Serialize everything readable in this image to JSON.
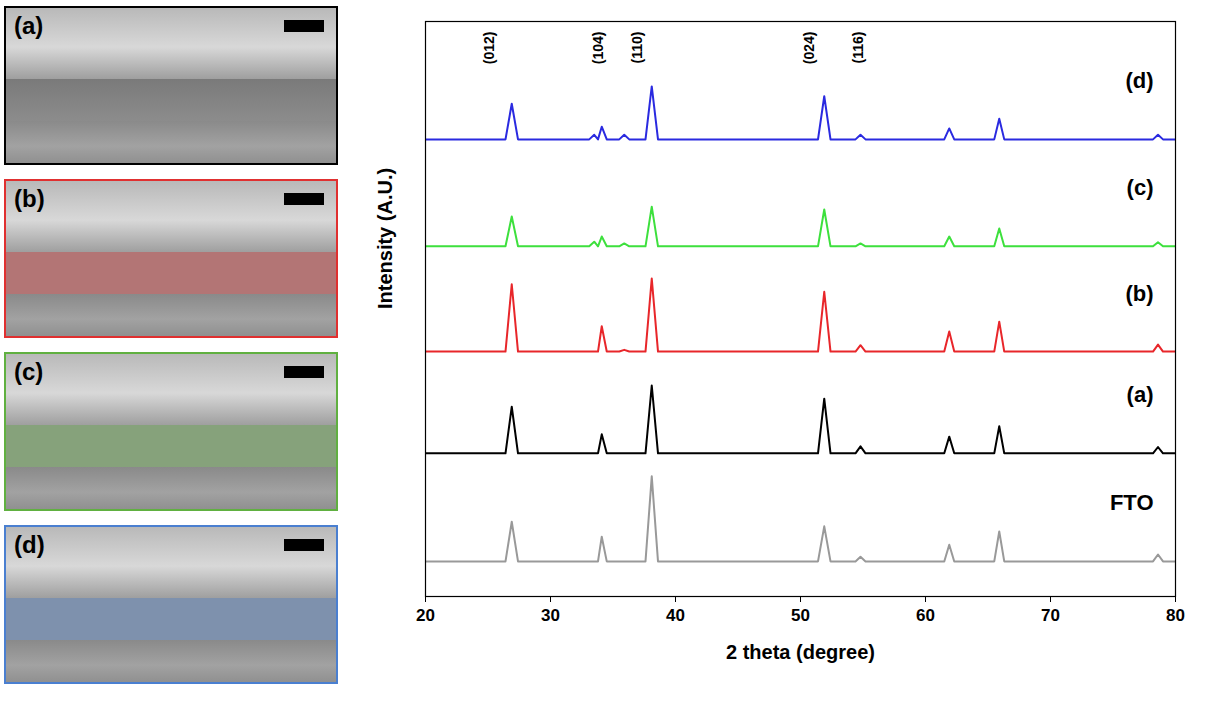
{
  "sem_panels": [
    {
      "label": "(a)",
      "color": "#000000"
    },
    {
      "label": "(b)",
      "color": "#e03030"
    },
    {
      "label": "(c)",
      "color": "#60b040"
    },
    {
      "label": "(d)",
      "color": "#4a7fd0"
    }
  ],
  "chart_data": {
    "type": "line",
    "xlabel": "2 theta (degree)",
    "ylabel": "Intensity (A.U.)",
    "xlim": [
      20,
      80
    ],
    "xticks": [
      20,
      30,
      40,
      50,
      60,
      70,
      80
    ],
    "ylim": [
      0,
      100
    ],
    "yticks": [],
    "tick_labels": "x",
    "x": [
      20,
      26.4,
      26.9,
      27.4,
      33.1,
      33.5,
      33.8,
      34.1,
      34.5,
      35.5,
      35.9,
      36.3,
      37.6,
      38.1,
      38.6,
      51.4,
      51.9,
      52.4,
      54.4,
      54.8,
      55.2,
      61.5,
      61.9,
      62.3,
      65.5,
      65.9,
      66.3,
      78.2,
      78.6,
      79.0,
      80
    ],
    "series": [
      {
        "name": "(d)",
        "color": "#2a2ae0",
        "values": [
          79.5,
          79.5,
          85.7,
          79.5,
          79.5,
          80.3,
          79.5,
          81.7,
          79.5,
          79.5,
          80.3,
          79.5,
          79.5,
          88.7,
          79.5,
          79.5,
          87,
          79.5,
          79.5,
          80.3,
          79.5,
          79.5,
          81.4,
          79.5,
          79.5,
          83.1,
          79.5,
          79.5,
          80.3,
          79.5,
          79.5
        ]
      },
      {
        "name": "(c)",
        "color": "#3de03d",
        "values": [
          60.9,
          60.9,
          66.1,
          60.9,
          60.9,
          61.7,
          60.9,
          62.6,
          60.9,
          60.9,
          61.4,
          60.9,
          60.9,
          67.8,
          60.9,
          60.9,
          67.3,
          60.9,
          60.9,
          61.4,
          60.9,
          60.9,
          62.6,
          60.9,
          60.9,
          64,
          60.9,
          60.9,
          61.6,
          60.9,
          60.9
        ]
      },
      {
        "name": "(b)",
        "color": "#e8262a",
        "values": [
          42.6,
          42.6,
          54.3,
          42.6,
          42.6,
          42.6,
          42.6,
          47,
          42.6,
          42.6,
          42.9,
          42.6,
          42.6,
          55.3,
          42.6,
          42.6,
          53,
          42.6,
          42.6,
          43.7,
          42.6,
          42.6,
          46.1,
          42.6,
          42.6,
          47.8,
          42.6,
          42.6,
          43.8,
          42.6,
          42.6
        ]
      },
      {
        "name": "(a)",
        "color": "#000000",
        "values": [
          24.9,
          24.9,
          33,
          24.9,
          24.9,
          24.9,
          24.9,
          28.2,
          24.9,
          24.9,
          24.9,
          24.9,
          24.9,
          36.7,
          24.9,
          24.9,
          34.4,
          24.9,
          24.9,
          26.1,
          24.9,
          24.9,
          27.8,
          24.9,
          24.9,
          29.6,
          24.9,
          24.9,
          26,
          24.9,
          24.9
        ]
      },
      {
        "name": "FTO",
        "color": "#999999",
        "values": [
          6.1,
          6.1,
          13,
          6.1,
          6.1,
          6.1,
          6.1,
          10.4,
          6.1,
          6.1,
          6.1,
          6.1,
          6.1,
          20.9,
          6.1,
          6.1,
          12.2,
          6.1,
          6.1,
          6.9,
          6.1,
          6.1,
          9,
          6.1,
          6.1,
          11.3,
          6.1,
          6.1,
          7.3,
          6.1,
          6.1
        ]
      }
    ],
    "annotations": [
      {
        "text": "(012)",
        "x": 24.7
      },
      {
        "text": "(104)",
        "x": 33.4
      },
      {
        "text": "(110)",
        "x": 36.5
      },
      {
        "text": "(024)",
        "x": 50.3
      },
      {
        "text": "(116)",
        "x": 54.2
      }
    ]
  }
}
